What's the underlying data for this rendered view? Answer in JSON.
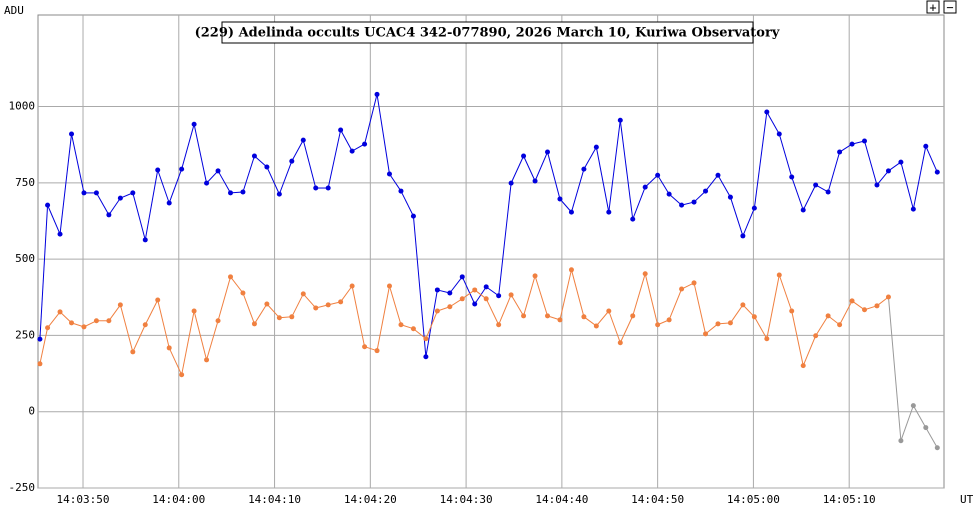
{
  "chart_data": {
    "type": "line",
    "title": "(229) Adelinda occults UCAC4 342-077890, 2026 March 10, Kuriwa Observatory",
    "y_label": "ADU",
    "x_label": "UT",
    "buttons": [
      "+",
      "−"
    ],
    "xlim": [
      50625.3,
      50719.9
    ],
    "ylim": [
      -250,
      1300
    ],
    "grid": true,
    "xticks": [
      {
        "value": 50630,
        "label": "14:03:50"
      },
      {
        "value": 50640,
        "label": "14:04:00"
      },
      {
        "value": 50650,
        "label": "14:04:10"
      },
      {
        "value": 50660,
        "label": "14:04:20"
      },
      {
        "value": 50670,
        "label": "14:04:30"
      },
      {
        "value": 50680,
        "label": "14:04:40"
      },
      {
        "value": 50690,
        "label": "14:04:50"
      },
      {
        "value": 50700,
        "label": "14:05:00"
      },
      {
        "value": 50710,
        "label": "14:05:10"
      }
    ],
    "yticks": [
      -250,
      0,
      250,
      500,
      750,
      1000
    ],
    "x": [
      50625.5,
      50626.3,
      50627.6,
      50628.8,
      50630.1,
      50631.4,
      50632.7,
      50633.9,
      50635.2,
      50636.5,
      50637.8,
      50639.0,
      50640.3,
      50641.6,
      50642.9,
      50644.1,
      50645.4,
      50646.7,
      50647.9,
      50649.2,
      50650.5,
      50651.8,
      50653.0,
      50654.3,
      50655.6,
      50656.9,
      50658.1,
      50659.4,
      50660.7,
      50662.0,
      50663.2,
      50664.5,
      50665.8,
      50667.0,
      50668.3,
      50669.6,
      50670.9,
      50672.1,
      50673.4,
      50674.7,
      50676.0,
      50677.2,
      50678.5,
      50679.8,
      50681.0,
      50682.3,
      50683.6,
      50684.9,
      50686.1,
      50687.4,
      50688.7,
      50690.0,
      50691.2,
      50692.5,
      50693.8,
      50695.0,
      50696.3,
      50697.6,
      50698.9,
      50700.1,
      50701.4,
      50702.7,
      50704.0,
      50705.2,
      50706.5,
      50707.8,
      50709.0,
      50710.3,
      50711.6,
      50712.9,
      50714.1,
      50715.4,
      50716.7,
      50718.0,
      50719.2
    ],
    "series": [
      {
        "color": "#0000dd",
        "values": [
          238,
          677,
          582,
          910,
          717,
          717,
          645,
          700,
          717,
          563,
          792,
          684,
          795,
          942,
          749,
          789,
          717,
          720,
          838,
          802,
          713,
          821,
          890,
          733,
          733,
          923,
          854,
          877,
          1040,
          779,
          723,
          641,
          180,
          399,
          389,
          442,
          353,
          409,
          380,
          749,
          838,
          756,
          851,
          697,
          654,
          795,
          867,
          654,
          955,
          631,
          736,
          775,
          713,
          677,
          687,
          723,
          775,
          703,
          576,
          667,
          982,
          910,
          769,
          661,
          743,
          720,
          851,
          877,
          887,
          743,
          789,
          818,
          664,
          870,
          785
        ]
      },
      {
        "color": "#f08040",
        "values": [
          157,
          275,
          327,
          291,
          278,
          298,
          298,
          350,
          196,
          285,
          366,
          209,
          121,
          330,
          170,
          298,
          442,
          389,
          288,
          353,
          308,
          311,
          386,
          340,
          350,
          360,
          412,
          213,
          200,
          412,
          285,
          272,
          239,
          330,
          344,
          370,
          399,
          370,
          285,
          383,
          314,
          445,
          314,
          301,
          465,
          311,
          281,
          330,
          226,
          314,
          452,
          285,
          301,
          402,
          422,
          255,
          288,
          291,
          350,
          311,
          239,
          448,
          330,
          151,
          249,
          314,
          285,
          363,
          334,
          347,
          376,
          -95,
          20,
          -52,
          -118
        ],
        "point_colors": [
          "#f08040",
          "#f08040",
          "#f08040",
          "#f08040",
          "#f08040",
          "#f08040",
          "#f08040",
          "#f08040",
          "#f08040",
          "#f08040",
          "#f08040",
          "#f08040",
          "#f08040",
          "#f08040",
          "#f08040",
          "#f08040",
          "#f08040",
          "#f08040",
          "#f08040",
          "#f08040",
          "#f08040",
          "#f08040",
          "#f08040",
          "#f08040",
          "#f08040",
          "#f08040",
          "#f08040",
          "#f08040",
          "#f08040",
          "#f08040",
          "#f08040",
          "#f08040",
          "#f08040",
          "#f08040",
          "#f08040",
          "#f08040",
          "#f08040",
          "#f08040",
          "#f08040",
          "#f08040",
          "#f08040",
          "#f08040",
          "#f08040",
          "#f08040",
          "#f08040",
          "#f08040",
          "#f08040",
          "#f08040",
          "#f08040",
          "#f08040",
          "#f08040",
          "#f08040",
          "#f08040",
          "#f08040",
          "#f08040",
          "#f08040",
          "#f08040",
          "#f08040",
          "#f08040",
          "#f08040",
          "#f08040",
          "#f08040",
          "#f08040",
          "#f08040",
          "#f08040",
          "#f08040",
          "#f08040",
          "#f08040",
          "#f08040",
          "#f08040",
          "#f08040",
          "#999999",
          "#999999",
          "#999999",
          "#999999"
        ]
      }
    ]
  }
}
